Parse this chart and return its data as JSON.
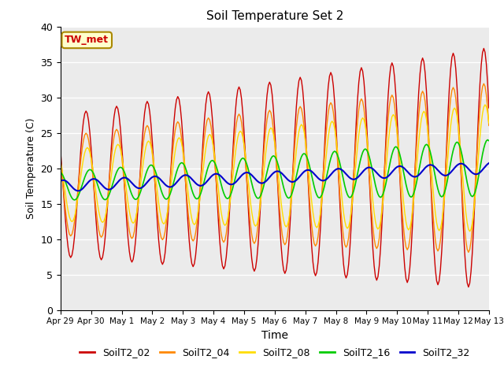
{
  "title": "Soil Temperature Set 2",
  "xlabel": "Time",
  "ylabel": "Soil Temperature (C)",
  "ylim": [
    0,
    40
  ],
  "annotation": "TW_met",
  "series_colors": {
    "SoilT2_02": "#cc0000",
    "SoilT2_04": "#ff8800",
    "SoilT2_08": "#ffdd00",
    "SoilT2_16": "#00cc00",
    "SoilT2_32": "#0000cc"
  },
  "xtick_labels": [
    "Apr 29",
    "Apr 30",
    "May 1",
    "May 2",
    "May 3",
    "May 4",
    "May 5",
    "May 6",
    "May 7",
    "May 8",
    "May 9",
    "May 10",
    "May 11",
    "May 12",
    "May 13"
  ],
  "bg_color": "#ebebeb",
  "fig_color": "#ffffff",
  "yticks": [
    0,
    5,
    10,
    15,
    20,
    25,
    30,
    35,
    40
  ]
}
